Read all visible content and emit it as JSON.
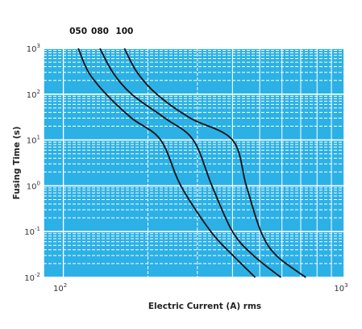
{
  "chart_data": {
    "type": "line",
    "xlabel": "Electric Current (A) rms",
    "ylabel": "Fusing Time (s)",
    "xscale": "log",
    "yscale": "log",
    "xlim": [
      85,
      1000
    ],
    "ylim": [
      0.01,
      1000
    ],
    "grid": true,
    "x_ticks": [
      {
        "base": "10",
        "exp": "2"
      },
      {
        "base": "10",
        "exp": "3"
      }
    ],
    "y_ticks": [
      {
        "base": "10",
        "exp": "3"
      },
      {
        "base": "10",
        "exp": "2"
      },
      {
        "base": "10",
        "exp": "1"
      },
      {
        "base": "10",
        "exp": "0"
      },
      {
        "base": "10",
        "exp": "-1"
      },
      {
        "base": "10",
        "exp": "-2"
      }
    ],
    "series": [
      {
        "name": "050",
        "x": [
          113,
          123,
          142,
          175,
          222,
          262,
          335,
          402,
          482
        ],
        "y": [
          1000,
          300,
          100,
          30,
          10,
          1,
          0.1,
          0.03,
          0.01
        ]
      },
      {
        "name": "080",
        "x": [
          135,
          150,
          175,
          230,
          290,
          338,
          400,
          475,
          595
        ],
        "y": [
          1000,
          300,
          100,
          30,
          10,
          1,
          0.1,
          0.03,
          0.01
        ]
      },
      {
        "name": "100",
        "x": [
          165,
          183,
          215,
          283,
          400,
          448,
          505,
          573,
          730
        ],
        "y": [
          1000,
          300,
          100,
          30,
          10,
          1,
          0.1,
          0.03,
          0.01
        ]
      }
    ],
    "colors": {
      "background": "#2cb1e6",
      "grid": "#ffffff",
      "curve": "#111111"
    }
  }
}
